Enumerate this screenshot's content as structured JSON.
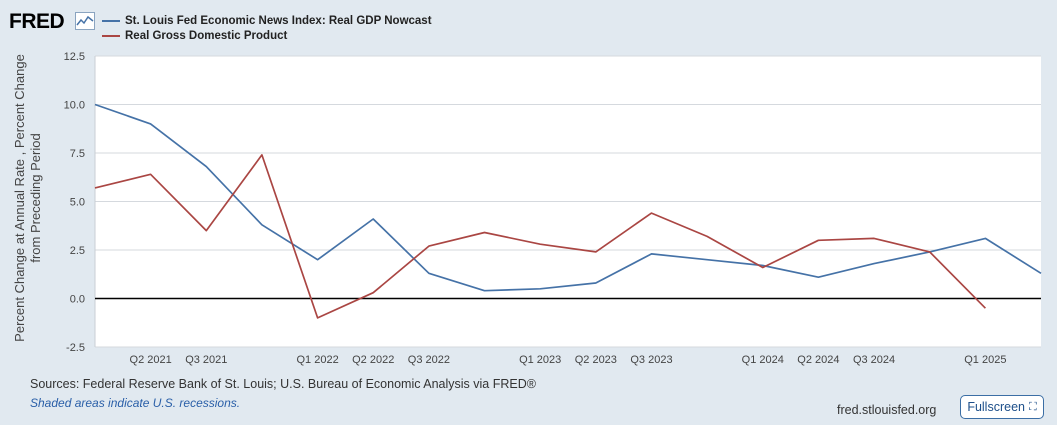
{
  "brand": {
    "logo_text": "FRED",
    "logo_icon": "trend-line-icon"
  },
  "footer": {
    "sources": "Sources: Federal Reserve Bank of St. Louis; U.S. Bureau of Economic Analysis via FRED®",
    "recession_note": "Shaded areas indicate U.S. recessions.",
    "site": "fred.stlouisfed.org",
    "fullscreen_label": "Fullscreen",
    "fullscreen_icon": "expand-icon"
  },
  "chart_data": {
    "type": "line",
    "ylabel": "Percent Change at Annual Rate , Percent Change from Preceding Period",
    "ylim": [
      -2.5,
      12.5
    ],
    "yticks": [
      12.5,
      10.0,
      7.5,
      5.0,
      2.5,
      0.0,
      -2.5
    ],
    "ytick_labels": [
      "12.5",
      "10.0",
      "7.5",
      "5.0",
      "2.5",
      "0.0",
      "-2.5"
    ],
    "xticks": [
      "Q2 2021",
      "Q3 2021",
      "Q1 2022",
      "Q2 2022",
      "Q3 2022",
      "Q1 2023",
      "Q2 2023",
      "Q3 2023",
      "Q1 2024",
      "Q2 2024",
      "Q3 2024",
      "Q1 2025"
    ],
    "x": [
      "Q1 2021",
      "Q2 2021",
      "Q3 2021",
      "Q4 2021",
      "Q1 2022",
      "Q2 2022",
      "Q3 2022",
      "Q4 2022",
      "Q1 2023",
      "Q2 2023",
      "Q3 2023",
      "Q4 2023",
      "Q1 2024",
      "Q2 2024",
      "Q3 2024",
      "Q4 2024",
      "Q1 2025",
      "Q2 2025"
    ],
    "grid": true,
    "legend_position": "top-left",
    "series": [
      {
        "name": "St. Louis Fed Economic News Index: Real GDP Nowcast",
        "color": "#4572a7",
        "values": [
          10.0,
          9.0,
          6.8,
          3.8,
          2.0,
          4.1,
          1.3,
          0.4,
          0.5,
          0.8,
          2.3,
          2.0,
          1.7,
          1.1,
          1.8,
          2.4,
          3.1,
          1.3
        ]
      },
      {
        "name": "Real Gross Domestic Product",
        "color": "#aa4643",
        "values": [
          5.7,
          6.4,
          3.5,
          7.4,
          -1.0,
          0.3,
          2.7,
          3.4,
          2.8,
          2.4,
          4.4,
          3.2,
          1.6,
          3.0,
          3.1,
          2.4,
          -0.5,
          null
        ]
      }
    ]
  }
}
